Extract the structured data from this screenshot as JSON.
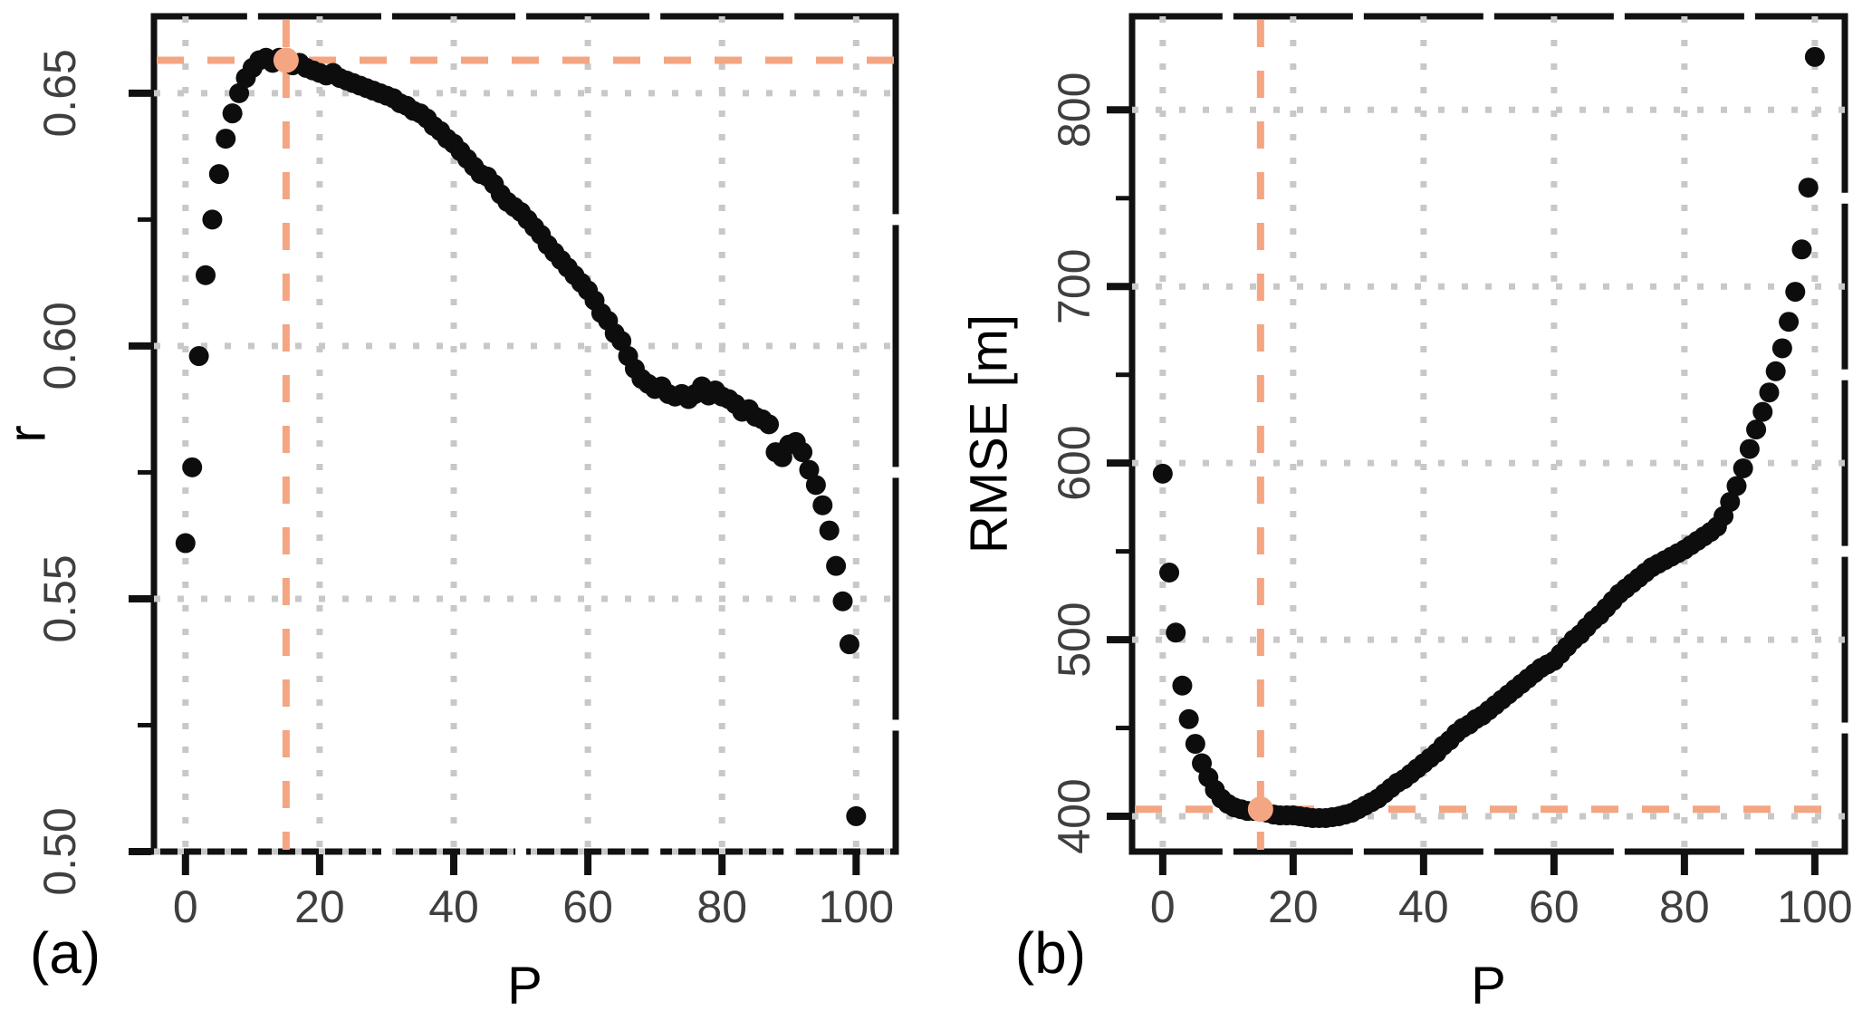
{
  "figure": {
    "background": "#ffffff",
    "description": "Two-panel scatter figure: correlation r and RMSE versus parameter P, optimum highlighted at P = 15"
  },
  "colors": {
    "point": "#0d0d0d",
    "highlight": "#F4A582",
    "grid": "#C8C8C8",
    "axis": "#111111",
    "tick_label": "#3F3F3F",
    "title_text": "#000000"
  },
  "chart_data": [
    {
      "id": "panel_a",
      "type": "scatter",
      "panel_label": "(a)",
      "xlabel": "P",
      "ylabel": "r",
      "xlim": [
        -4.7,
        105.9
      ],
      "ylim": [
        0.5,
        0.6652
      ],
      "xticks": [
        0,
        20,
        40,
        60,
        80,
        100
      ],
      "xtick_labels": [
        "0",
        "20",
        "40",
        "60",
        "80",
        "100"
      ],
      "yticks": [
        0.5,
        0.55,
        0.6,
        0.65
      ],
      "ytick_labels": [
        "0.50",
        "0.55",
        "0.60",
        "0.65"
      ],
      "minor_xticks": [
        10,
        30,
        50,
        70,
        90
      ],
      "minor_yticks": [
        0.525,
        0.575,
        0.625
      ],
      "grid": true,
      "legend": "none",
      "highlight_point": {
        "x": 15,
        "y": 0.6565
      },
      "highlight_lines": {
        "vertical_x": 15,
        "horizontal_y": 0.6565
      },
      "x": [
        0,
        1,
        2,
        3,
        4,
        5,
        6,
        7,
        8,
        9,
        10,
        11,
        12,
        13,
        14,
        15,
        16,
        17,
        18,
        19,
        20,
        21,
        22,
        23,
        24,
        25,
        26,
        27,
        28,
        29,
        30,
        31,
        32,
        33,
        34,
        35,
        36,
        37,
        38,
        39,
        40,
        41,
        42,
        43,
        44,
        45,
        46,
        47,
        48,
        49,
        50,
        51,
        52,
        53,
        54,
        55,
        56,
        57,
        58,
        59,
        60,
        61,
        62,
        63,
        64,
        65,
        66,
        67,
        68,
        69,
        70,
        71,
        72,
        73,
        74,
        75,
        76,
        77,
        78,
        79,
        80,
        81,
        82,
        83,
        84,
        85,
        86,
        87,
        88,
        89,
        90,
        91,
        92,
        93,
        94,
        95,
        96,
        97,
        98,
        99,
        100
      ],
      "y": [
        0.561,
        0.576,
        0.598,
        0.614,
        0.625,
        0.634,
        0.641,
        0.646,
        0.65,
        0.653,
        0.655,
        0.6565,
        0.657,
        0.656,
        0.657,
        0.6565,
        0.6555,
        0.656,
        0.655,
        0.6545,
        0.654,
        0.6535,
        0.654,
        0.653,
        0.6525,
        0.652,
        0.6515,
        0.651,
        0.6505,
        0.65,
        0.6495,
        0.649,
        0.648,
        0.6475,
        0.6465,
        0.646,
        0.645,
        0.6435,
        0.6425,
        0.641,
        0.64,
        0.6385,
        0.637,
        0.6355,
        0.634,
        0.6335,
        0.632,
        0.63,
        0.6285,
        0.6275,
        0.6265,
        0.625,
        0.6235,
        0.622,
        0.62,
        0.6185,
        0.617,
        0.6155,
        0.614,
        0.6125,
        0.611,
        0.609,
        0.6065,
        0.605,
        0.6025,
        0.601,
        0.598,
        0.5955,
        0.5935,
        0.5925,
        0.5915,
        0.592,
        0.5905,
        0.59,
        0.5905,
        0.5895,
        0.5905,
        0.592,
        0.5902,
        0.5912,
        0.59,
        0.5895,
        0.5885,
        0.587,
        0.5875,
        0.586,
        0.5855,
        0.5845,
        0.579,
        0.578,
        0.5805,
        0.581,
        0.579,
        0.5755,
        0.5725,
        0.5685,
        0.5635,
        0.5565,
        0.5495,
        0.541,
        0.507
      ]
    },
    {
      "id": "panel_b",
      "type": "scatter",
      "panel_label": "(b)",
      "xlabel": "P",
      "ylabel": "RMSE [m]",
      "xlim": [
        -4.7,
        104.6
      ],
      "ylim": [
        380,
        853
      ],
      "xticks": [
        0,
        20,
        40,
        60,
        80,
        100
      ],
      "xtick_labels": [
        "0",
        "20",
        "40",
        "60",
        "80",
        "100"
      ],
      "yticks": [
        400,
        500,
        600,
        700,
        800
      ],
      "ytick_labels": [
        "400",
        "500",
        "600",
        "700",
        "800"
      ],
      "minor_xticks": [
        10,
        30,
        50,
        70,
        90
      ],
      "minor_yticks": [
        450,
        550,
        650,
        750
      ],
      "grid": true,
      "legend": "none",
      "highlight_point": {
        "x": 15,
        "y": 404
      },
      "highlight_lines": {
        "vertical_x": 15,
        "horizontal_y": 404
      },
      "x": [
        0,
        1,
        2,
        3,
        4,
        5,
        6,
        7,
        8,
        9,
        10,
        11,
        12,
        13,
        14,
        15,
        16,
        17,
        18,
        19,
        20,
        21,
        22,
        23,
        24,
        25,
        26,
        27,
        28,
        29,
        30,
        31,
        32,
        33,
        34,
        35,
        36,
        37,
        38,
        39,
        40,
        41,
        42,
        43,
        44,
        45,
        46,
        47,
        48,
        49,
        50,
        51,
        52,
        53,
        54,
        55,
        56,
        57,
        58,
        59,
        60,
        61,
        62,
        63,
        64,
        65,
        66,
        67,
        68,
        69,
        70,
        71,
        72,
        73,
        74,
        75,
        76,
        77,
        78,
        79,
        80,
        81,
        82,
        83,
        84,
        85,
        86,
        87,
        88,
        89,
        90,
        91,
        92,
        93,
        94,
        95,
        96,
        97,
        98,
        99,
        100
      ],
      "y": [
        594,
        538,
        504,
        474,
        455,
        441,
        430,
        422,
        415,
        410,
        407,
        405,
        404,
        403,
        403,
        404,
        402,
        401,
        400.5,
        400.5,
        400.5,
        400,
        399.5,
        399,
        399,
        399,
        399.5,
        400,
        401,
        402,
        404,
        406,
        408,
        410,
        413,
        416,
        419,
        421,
        424,
        427,
        430,
        433,
        436,
        440,
        443,
        447,
        450,
        452,
        455,
        457,
        460,
        463,
        466,
        469,
        472,
        475,
        478,
        481,
        484,
        486,
        488,
        492,
        496,
        500,
        503,
        507,
        511,
        514,
        518,
        522,
        526,
        529,
        532,
        535,
        538,
        541,
        543,
        545,
        547,
        549,
        551,
        553.5,
        556,
        558.5,
        561,
        564,
        570,
        578,
        587,
        597,
        608,
        619,
        629,
        640,
        652,
        665,
        680,
        697,
        721,
        756,
        830
      ]
    }
  ]
}
